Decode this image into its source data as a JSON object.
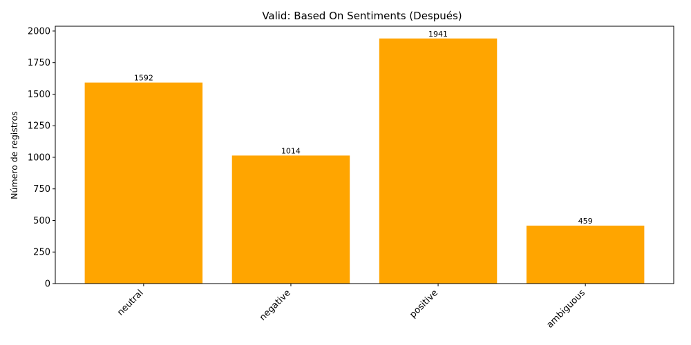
{
  "chart_data": {
    "type": "bar",
    "title": "Valid: Based On Sentiments (Después)",
    "xlabel": "",
    "ylabel": "Número de registros",
    "categories": [
      "neutral",
      "negative",
      "positive",
      "ambiguous"
    ],
    "values": [
      1592,
      1014,
      1941,
      459
    ],
    "data_labels": [
      "1592",
      "1014",
      "1941",
      "459"
    ],
    "ylim": [
      0,
      2038
    ],
    "yticks": [
      0,
      250,
      500,
      750,
      1000,
      1250,
      1500,
      1750,
      2000
    ],
    "ytick_labels": [
      "0",
      "250",
      "500",
      "750",
      "1000",
      "1250",
      "1500",
      "1750",
      "2000"
    ],
    "bar_color": "#ffa500",
    "grid": false,
    "legend": "none"
  }
}
